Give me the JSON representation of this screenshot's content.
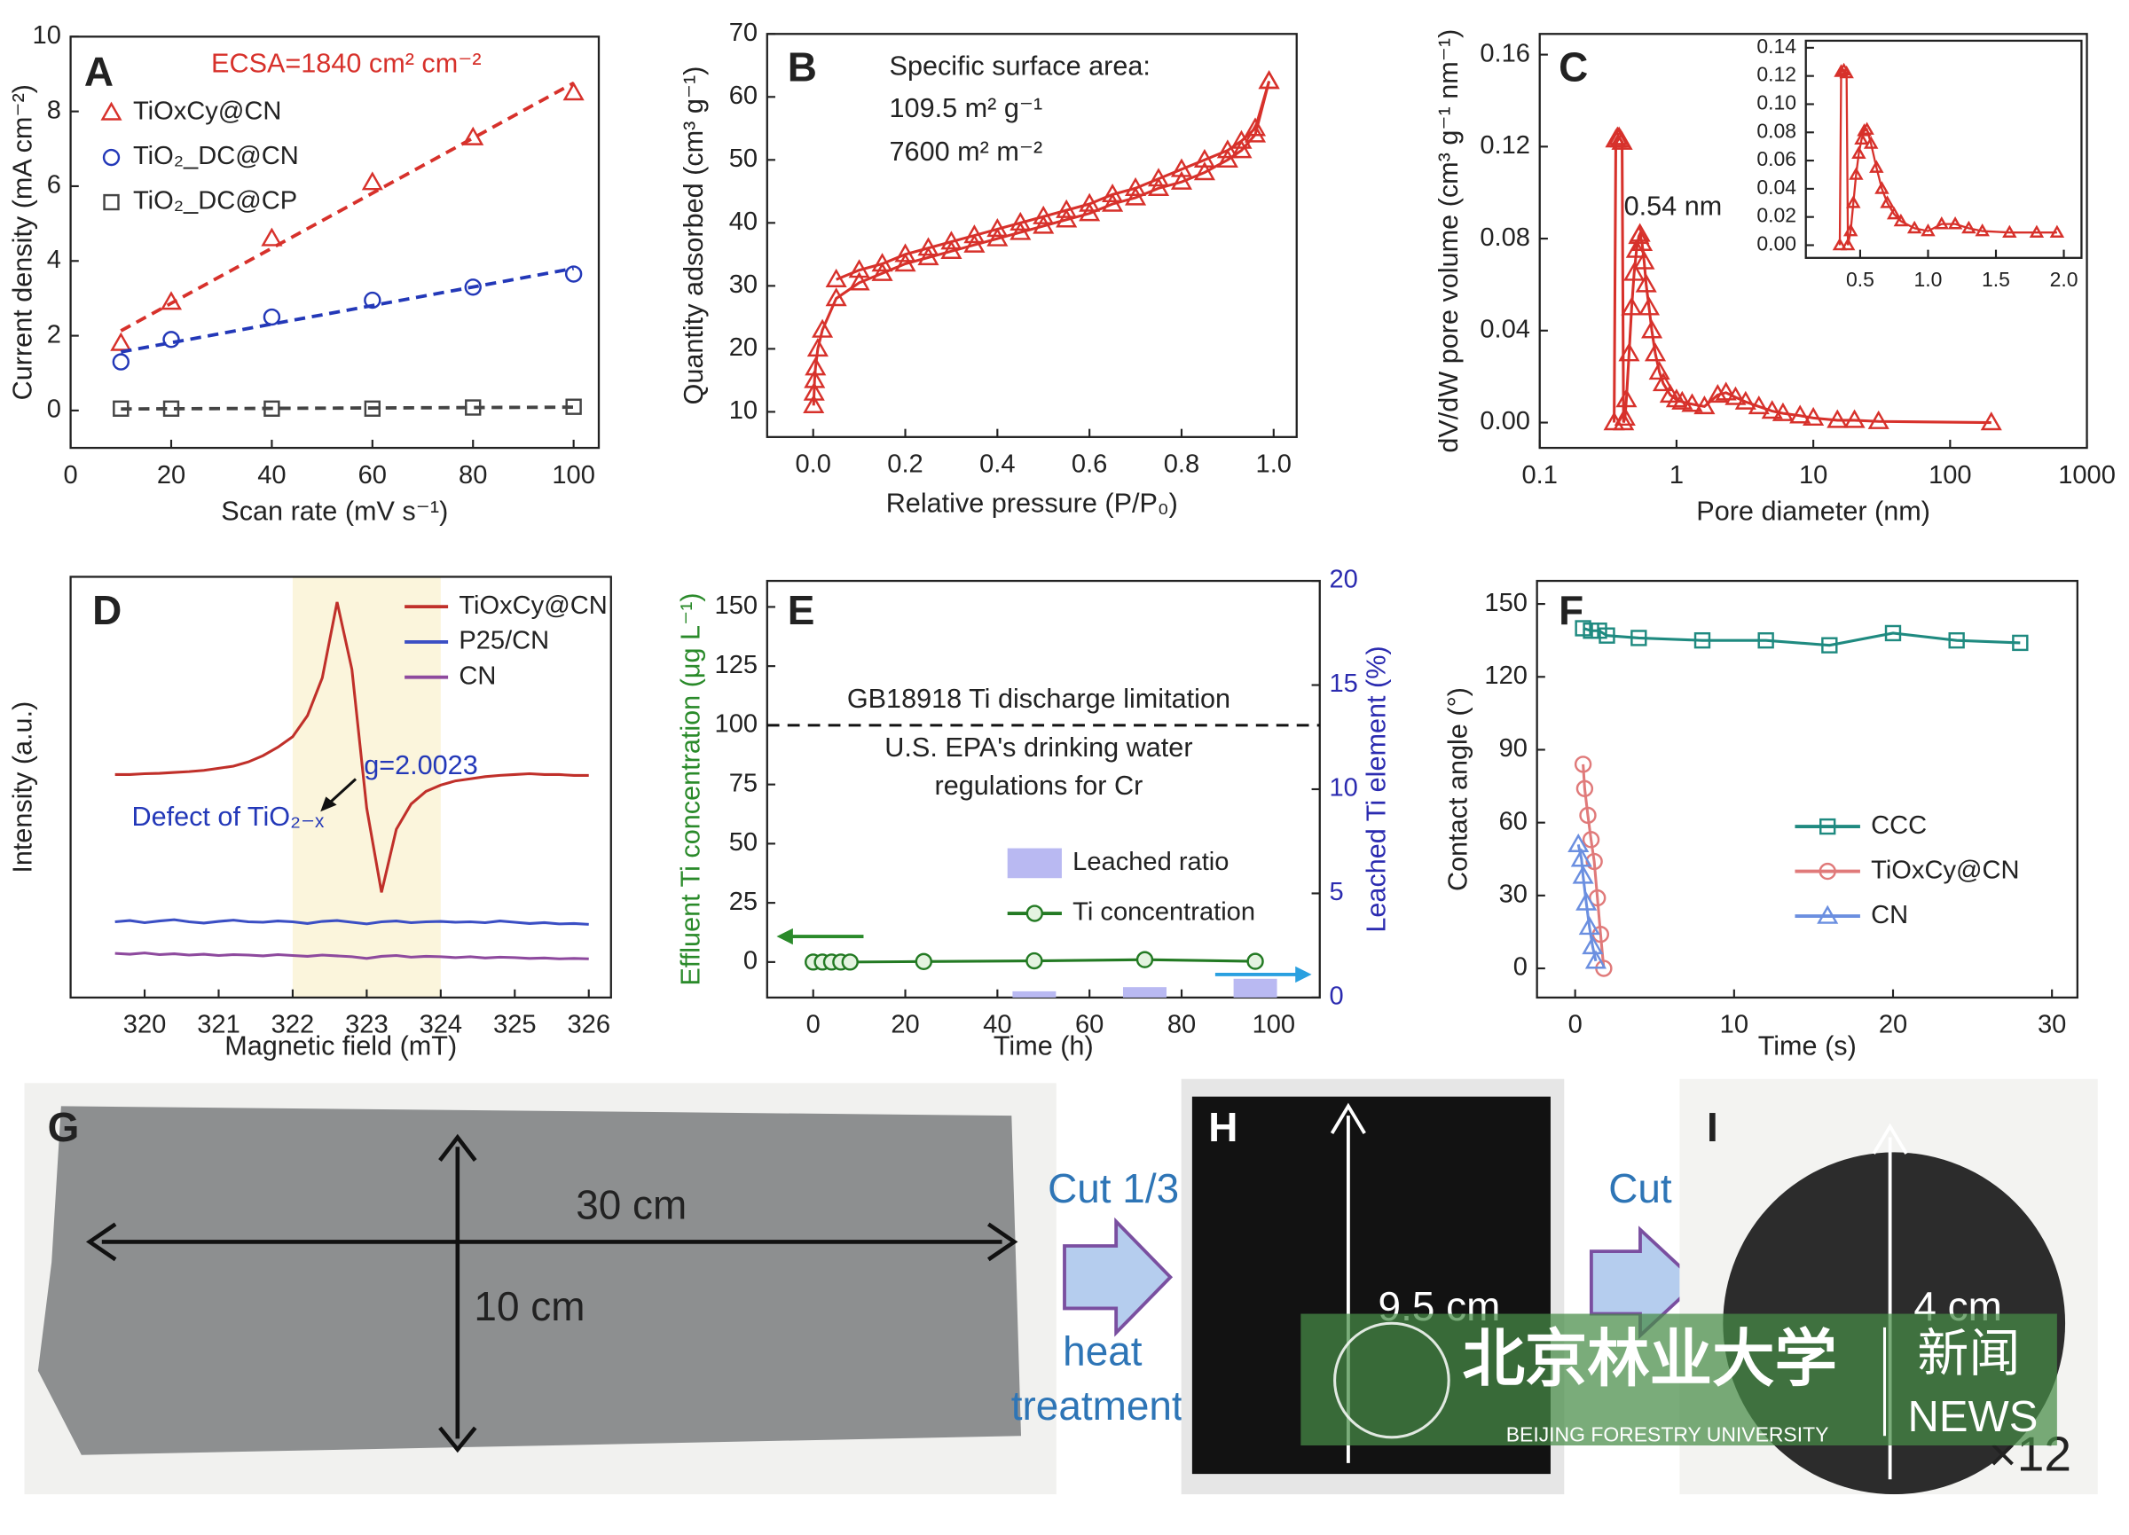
{
  "chart_data": [
    {
      "type": "scatter",
      "panel": "A",
      "xlabel": "Scan rate (mV s⁻¹)",
      "ylabel": "Current density (mA cm⁻²)",
      "xlim": [
        0,
        105
      ],
      "ylim": [
        -1,
        10
      ],
      "xticks": [
        0,
        20,
        40,
        60,
        80,
        100
      ],
      "yticks": [
        0,
        2,
        4,
        6,
        8,
        10
      ],
      "trendline": "linear",
      "annotations": [
        {
          "text": "ECSA=1840 cm² cm⁻²",
          "color": "#d7312b"
        }
      ],
      "x": [
        10,
        20,
        40,
        60,
        80,
        100
      ],
      "series": [
        {
          "name": "TiOxCy@CN",
          "color": "#d7312b",
          "marker": "triangle",
          "values": [
            1.8,
            2.9,
            4.6,
            6.1,
            7.3,
            8.5
          ]
        },
        {
          "name": "TiO₂_DC@CN",
          "color": "#2338b8",
          "marker": "circle",
          "values": [
            1.3,
            1.9,
            2.5,
            2.95,
            3.3,
            3.65
          ]
        },
        {
          "name": "TiO₂_DC@CP",
          "color": "#444444",
          "marker": "square",
          "values": [
            0.05,
            0.05,
            0.05,
            0.05,
            0.08,
            0.1
          ]
        }
      ]
    },
    {
      "type": "line",
      "panel": "B",
      "xlabel": "Relative pressure (P/P₀)",
      "ylabel": "Quantity adsorbed (cm³ g⁻¹)",
      "xlim": [
        -0.1,
        1.05
      ],
      "ylim": [
        6,
        70
      ],
      "xticks": [
        {
          "value": 0,
          "label": "0.0"
        },
        0.2,
        0.4,
        0.6,
        0.8,
        {
          "value": 1,
          "label": "1.0"
        }
      ],
      "yticks": [
        10,
        20,
        30,
        40,
        50,
        60,
        70
      ],
      "annotations": [
        {
          "text": "Specific surface area:"
        },
        {
          "text": "109.5 m² g⁻¹"
        },
        {
          "text": "7600 m² m⁻²"
        }
      ],
      "series": [
        {
          "color": "#d7312b",
          "marker": "triangle",
          "x": [
            0.001,
            0.002,
            0.003,
            0.005,
            0.01,
            0.02,
            0.05,
            0.1,
            0.15,
            0.2,
            0.25,
            0.3,
            0.35,
            0.4,
            0.45,
            0.5,
            0.55,
            0.6,
            0.65,
            0.7,
            0.75,
            0.8,
            0.85,
            0.9,
            0.93,
            0.96,
            0.99
          ],
          "values": [
            11,
            13,
            15,
            17,
            20,
            23,
            28,
            30.5,
            32,
            33.5,
            34.5,
            35.5,
            36.5,
            37.5,
            38.5,
            39.5,
            40.5,
            41.5,
            43,
            44,
            45.5,
            46.5,
            48,
            50,
            51.5,
            54,
            62.5
          ]
        },
        {
          "color": "#d7312b",
          "marker": "triangle",
          "x": [
            0.99,
            0.96,
            0.93,
            0.9,
            0.85,
            0.8,
            0.75,
            0.7,
            0.65,
            0.6,
            0.55,
            0.5,
            0.45,
            0.4,
            0.35,
            0.3,
            0.25,
            0.2,
            0.15,
            0.1,
            0.05
          ],
          "values": [
            62.5,
            55,
            53,
            51.5,
            50,
            48.5,
            47,
            45.5,
            44.5,
            43,
            42,
            41,
            40,
            39,
            38,
            37,
            36,
            35,
            33.5,
            32.5,
            31
          ]
        }
      ]
    },
    {
      "type": "line",
      "panel": "C",
      "xlabel": "Pore diameter (nm)",
      "ylabel": "dV/dW pore volume (cm³ g⁻¹ nm⁻¹)",
      "xscale": "log",
      "xlim": [
        0.1,
        1000
      ],
      "ylim": [
        -0.011,
        0.169
      ],
      "xticks": [
        0.1,
        1,
        10,
        100,
        1000
      ],
      "yticks": [
        {
          "value": 0,
          "label": "0.00"
        },
        0.04,
        0.08,
        0.12,
        0.16
      ],
      "annotations": [
        {
          "text": "0.54 nm"
        }
      ],
      "series": [
        {
          "color": "#d7312b",
          "marker": "triangle",
          "x": [
            0.35,
            0.36,
            0.37,
            0.38,
            0.39,
            0.4,
            0.41,
            0.42,
            0.43,
            0.45,
            0.47,
            0.49,
            0.51,
            0.53,
            0.54,
            0.56,
            0.58,
            0.6,
            0.63,
            0.66,
            0.7,
            0.75,
            0.8,
            0.9,
            1.0,
            1.1,
            1.3,
            1.6,
            2.0,
            2.3,
            2.7,
            3.2,
            4,
            5,
            6,
            8,
            10,
            15,
            20,
            30,
            200
          ],
          "values": [
            0.0,
            0.123,
            0.124,
            0.124,
            0.123,
            0.122,
            0.0,
            0.002,
            0.01,
            0.03,
            0.05,
            0.065,
            0.075,
            0.081,
            0.082,
            0.078,
            0.07,
            0.06,
            0.05,
            0.04,
            0.03,
            0.022,
            0.017,
            0.012,
            0.01,
            0.009,
            0.008,
            0.007,
            0.012,
            0.013,
            0.011,
            0.009,
            0.007,
            0.005,
            0.004,
            0.003,
            0.002,
            0.001,
            0.001,
            0.0005,
            0.0
          ]
        }
      ]
    },
    {
      "type": "line",
      "xlim": [
        0.1,
        2.13
      ],
      "ylim": [
        -0.009,
        0.145
      ],
      "xticks": [
        0.5,
        {
          "value": 1,
          "label": "1.0"
        },
        1.5,
        {
          "value": 2,
          "label": "2.0"
        }
      ],
      "yticks": [
        {
          "value": 0,
          "label": "0.00"
        },
        0.02,
        0.04,
        0.06,
        0.08,
        {
          "value": 0.1,
          "label": "0.10"
        },
        0.12,
        0.14
      ],
      "series": [
        {
          "color": "#d7312b",
          "marker": "triangle",
          "x": [
            0.35,
            0.36,
            0.38,
            0.4,
            0.41,
            0.43,
            0.45,
            0.47,
            0.49,
            0.51,
            0.53,
            0.55,
            0.58,
            0.62,
            0.66,
            0.7,
            0.75,
            0.8,
            0.9,
            1.0,
            1.1,
            1.2,
            1.3,
            1.4,
            1.6,
            1.8,
            1.95
          ],
          "values": [
            0,
            0.123,
            0.124,
            0.122,
            0.0,
            0.01,
            0.03,
            0.05,
            0.065,
            0.075,
            0.081,
            0.082,
            0.072,
            0.055,
            0.04,
            0.03,
            0.022,
            0.017,
            0.012,
            0.01,
            0.015,
            0.015,
            0.012,
            0.01,
            0.009,
            0.009,
            0.009
          ]
        }
      ]
    },
    {
      "type": "line",
      "panel": "D",
      "xlabel": "Magnetic field (mT)",
      "ylabel": "Intensity (a.u.)",
      "xlim": [
        319,
        326.3
      ],
      "ylim": [
        0,
        100
      ],
      "xticks": [
        320,
        321,
        322,
        323,
        324,
        325,
        326
      ],
      "shaded_xrange": [
        322,
        324
      ],
      "shade_color": "#fbf5dc",
      "annotations": [
        {
          "text": "g=2.0023",
          "color": "#2338b8"
        },
        {
          "text": "Defect of TiO₂₋ₓ",
          "color": "#2338b8"
        }
      ],
      "x": [
        319.6,
        319.8,
        320,
        320.2,
        320.4,
        320.6,
        320.8,
        321,
        321.2,
        321.4,
        321.6,
        321.8,
        322,
        322.2,
        322.4,
        322.6,
        322.8,
        323,
        323.2,
        323.4,
        323.6,
        323.8,
        324,
        324.2,
        324.4,
        324.6,
        324.8,
        325,
        325.2,
        325.4,
        325.6,
        325.8,
        326
      ],
      "series": [
        {
          "name": "TiOxCy@CN",
          "color": "#c0302a",
          "values": [
            53,
            53,
            53.2,
            53.3,
            53.5,
            53.7,
            54,
            54.5,
            55,
            56,
            57.5,
            59.5,
            62,
            67,
            76,
            94,
            78,
            45,
            25,
            40,
            46,
            49,
            50.5,
            51.5,
            52,
            52.5,
            52.8,
            53,
            53.2,
            53,
            53,
            52.8,
            52.8
          ]
        },
        {
          "name": "P25/CN",
          "color": "#3b4fc4",
          "values": [
            18,
            18.3,
            17.8,
            18.2,
            18.5,
            18,
            17.7,
            18.1,
            18.4,
            18,
            17.9,
            18.2,
            18,
            17.6,
            18.1,
            18.3,
            17.9,
            17.5,
            18,
            18.2,
            17.8,
            18,
            18.1,
            17.9,
            18,
            17.8,
            18.2,
            17.9,
            17.6,
            17.8,
            17.5,
            17.6,
            17.4
          ]
        },
        {
          "name": "CN",
          "color": "#8e4a9e",
          "values": [
            10.5,
            10.3,
            10.6,
            10.2,
            10.4,
            10.1,
            10.3,
            10,
            10.2,
            10.1,
            9.9,
            10.2,
            10,
            9.8,
            10.1,
            9.9,
            9.7,
            9.3,
            9.8,
            10,
            9.6,
            9.8,
            9.7,
            9.5,
            9.7,
            9.4,
            9.6,
            9.5,
            9.3,
            9.4,
            9.2,
            9.3,
            9.2
          ]
        }
      ]
    },
    {
      "type": "line",
      "panel": "E",
      "xlabel": "Time (h)",
      "ylabel": "Effluent Ti concentration (μg L⁻¹)",
      "y2label": "Leached Ti element (%)",
      "ylabel_color": "#2a8a2a",
      "y2label_color": "#2b2bb0",
      "xlim": [
        -10,
        110
      ],
      "ylim": [
        -15,
        161
      ],
      "y2lim": [
        0,
        20
      ],
      "xticks": [
        0,
        20,
        40,
        60,
        80,
        100
      ],
      "yticks": [
        0,
        25,
        50,
        75,
        100,
        125,
        150
      ],
      "y2ticks": [
        0,
        5,
        10,
        15,
        20
      ],
      "reference_lines": [
        {
          "value": 100,
          "style": "dashed"
        }
      ],
      "annotations": [
        {
          "text": "GB18918 Ti discharge limitation"
        },
        {
          "text": "U.S. EPA's drinking water"
        },
        {
          "text": "regulations for Cr"
        }
      ],
      "series": [
        {
          "name": "Leached ratio",
          "type": "bar",
          "axis": "y2",
          "color": "#b9b9f2",
          "x": [
            48,
            72,
            96
          ],
          "values": [
            0.3,
            0.5,
            0.9
          ]
        },
        {
          "name": "Ti concentration",
          "color": "#237a23",
          "marker": "circle",
          "marker_fill": "#e4f3e0",
          "x": [
            0,
            2,
            4,
            6,
            8,
            24,
            48,
            72,
            96
          ],
          "values": [
            0,
            0,
            0,
            0,
            0,
            0.2,
            0.5,
            1,
            0.3
          ]
        }
      ]
    },
    {
      "type": "line",
      "panel": "F",
      "xlabel": "Time (s)",
      "ylabel": "Contact angle (°)",
      "xlim": [
        -2.4,
        31.6
      ],
      "ylim": [
        -12,
        159.5
      ],
      "xticks": [
        0,
        10,
        20,
        30
      ],
      "yticks": [
        0,
        30,
        60,
        90,
        120,
        150
      ],
      "series": [
        {
          "name": "CCC",
          "color": "#1f8a80",
          "marker": "square",
          "x": [
            0.5,
            1,
            1.5,
            2,
            4,
            8,
            12,
            16,
            20,
            24,
            28
          ],
          "values": [
            140,
            139,
            139,
            137,
            136,
            135,
            135,
            133,
            138,
            135,
            134
          ]
        },
        {
          "name": "TiOxCy@CN",
          "color": "#e07a7a",
          "marker": "circle",
          "x": [
            0.5,
            0.6,
            0.8,
            1.0,
            1.2,
            1.4,
            1.6,
            1.8
          ],
          "values": [
            84,
            74,
            63,
            53,
            44,
            29,
            14,
            0
          ]
        },
        {
          "name": "CN",
          "color": "#6b8fe0",
          "marker": "triangle",
          "x": [
            0.2,
            0.4,
            0.5,
            0.7,
            0.9,
            1.1,
            1.3
          ],
          "values": [
            51,
            45,
            38,
            27,
            17,
            9,
            3
          ]
        }
      ]
    }
  ],
  "photos": {
    "panels": [
      "G",
      "H",
      "I"
    ],
    "length_g": "30 cm",
    "width_g": "10 cm",
    "step1": "Cut 1/3",
    "step1_note": [
      "heat",
      "treatment"
    ],
    "length_h": "9.5 cm",
    "step2": "Cut",
    "length_i": "4 cm",
    "count_i": "×12"
  },
  "watermark": {
    "name_cn": "北京林业大学",
    "name_en": "BEIJING FORESTRY UNIVERSITY",
    "news_cn": "新闻",
    "news_en": "NEWS"
  }
}
